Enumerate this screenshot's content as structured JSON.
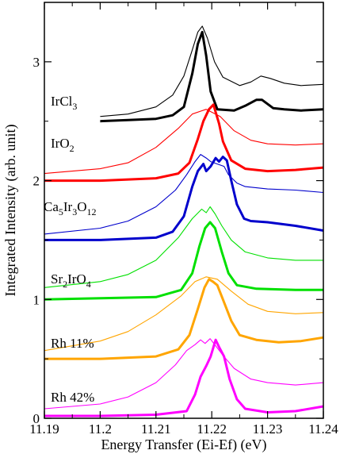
{
  "chart_data": {
    "type": "line",
    "xlabel": "Energy Transfer (Ei-Ef) (eV)",
    "ylabel": "Integrated Intensity (arb. unit)",
    "xlim": [
      11.19,
      11.24
    ],
    "ylim": [
      0,
      3.5
    ],
    "x_ticks": [
      "11.19",
      "11.2",
      "11.21",
      "11.22",
      "11.23",
      "11.24"
    ],
    "y_ticks": [
      "0",
      "1",
      "2",
      "3"
    ],
    "grid": false,
    "legend": "none",
    "series_labels": [
      {
        "parts": [
          {
            "t": "IrCl"
          },
          {
            "t": "3",
            "sub": true
          }
        ],
        "color": "#000000"
      },
      {
        "parts": [
          {
            "t": "IrO"
          },
          {
            "t": "2",
            "sub": true
          }
        ],
        "color": "#ff0000"
      },
      {
        "parts": [
          {
            "t": "Ca"
          },
          {
            "t": "5",
            "sub": true
          },
          {
            "t": "Ir"
          },
          {
            "t": "3",
            "sub": true
          },
          {
            "t": "O"
          },
          {
            "t": "12",
            "sub": true
          }
        ],
        "color": "#0000cc"
      },
      {
        "parts": [
          {
            "t": "Sr"
          },
          {
            "t": "2",
            "sub": true
          },
          {
            "t": "IrO"
          },
          {
            "t": "4",
            "sub": true
          }
        ],
        "color": "#00e000"
      },
      {
        "parts": [
          {
            "t": "Rh 11%"
          }
        ],
        "color": "#ffa500"
      },
      {
        "parts": [
          {
            "t": "Rh 42%"
          }
        ],
        "color": "#ff00ff"
      }
    ],
    "series": [
      {
        "color": "#000000",
        "width": "thick",
        "points": [
          [
            11.2,
            2.5
          ],
          [
            11.205,
            2.51
          ],
          [
            11.21,
            2.52
          ],
          [
            11.213,
            2.55
          ],
          [
            11.215,
            2.62
          ],
          [
            11.2165,
            2.9
          ],
          [
            11.2175,
            3.15
          ],
          [
            11.2183,
            3.25
          ],
          [
            11.219,
            3.05
          ],
          [
            11.2198,
            2.75
          ],
          [
            11.221,
            2.6
          ],
          [
            11.224,
            2.59
          ],
          [
            11.226,
            2.63
          ],
          [
            11.228,
            2.68
          ],
          [
            11.229,
            2.68
          ],
          [
            11.231,
            2.61
          ],
          [
            11.233,
            2.6
          ],
          [
            11.236,
            2.59
          ],
          [
            11.24,
            2.6
          ]
        ]
      },
      {
        "color": "#000000",
        "width": "thin",
        "points": [
          [
            11.2,
            2.54
          ],
          [
            11.205,
            2.56
          ],
          [
            11.21,
            2.62
          ],
          [
            11.213,
            2.72
          ],
          [
            11.215,
            2.88
          ],
          [
            11.2165,
            3.1
          ],
          [
            11.2175,
            3.25
          ],
          [
            11.2183,
            3.3
          ],
          [
            11.2192,
            3.2
          ],
          [
            11.2205,
            3.0
          ],
          [
            11.222,
            2.87
          ],
          [
            11.225,
            2.8
          ],
          [
            11.227,
            2.83
          ],
          [
            11.2288,
            2.88
          ],
          [
            11.2305,
            2.86
          ],
          [
            11.233,
            2.82
          ],
          [
            11.236,
            2.8
          ],
          [
            11.24,
            2.81
          ]
        ]
      },
      {
        "color": "#ff0000",
        "width": "thick",
        "points": [
          [
            11.19,
            2.0
          ],
          [
            11.2,
            2.0
          ],
          [
            11.21,
            2.02
          ],
          [
            11.214,
            2.06
          ],
          [
            11.216,
            2.15
          ],
          [
            11.2175,
            2.35
          ],
          [
            11.2185,
            2.5
          ],
          [
            11.2195,
            2.6
          ],
          [
            11.2203,
            2.64
          ],
          [
            11.2213,
            2.48
          ],
          [
            11.222,
            2.33
          ],
          [
            11.2235,
            2.17
          ],
          [
            11.226,
            2.1
          ],
          [
            11.23,
            2.08
          ],
          [
            11.235,
            2.09
          ],
          [
            11.24,
            2.11
          ]
        ]
      },
      {
        "color": "#ff0000",
        "width": "thin",
        "points": [
          [
            11.19,
            2.06
          ],
          [
            11.2,
            2.1
          ],
          [
            11.205,
            2.15
          ],
          [
            11.21,
            2.28
          ],
          [
            11.214,
            2.44
          ],
          [
            11.2165,
            2.56
          ],
          [
            11.219,
            2.6
          ],
          [
            11.2215,
            2.54
          ],
          [
            11.224,
            2.42
          ],
          [
            11.227,
            2.34
          ],
          [
            11.23,
            2.31
          ],
          [
            11.235,
            2.3
          ],
          [
            11.24,
            2.31
          ]
        ]
      },
      {
        "color": "#0000cc",
        "width": "thick",
        "points": [
          [
            11.19,
            1.5
          ],
          [
            11.2,
            1.5
          ],
          [
            11.21,
            1.52
          ],
          [
            11.213,
            1.57
          ],
          [
            11.215,
            1.7
          ],
          [
            11.2165,
            1.95
          ],
          [
            11.2175,
            2.08
          ],
          [
            11.2185,
            2.14
          ],
          [
            11.219,
            2.08
          ],
          [
            11.2198,
            2.12
          ],
          [
            11.2207,
            2.19
          ],
          [
            11.2213,
            2.16
          ],
          [
            11.222,
            2.2
          ],
          [
            11.2227,
            2.17
          ],
          [
            11.2235,
            2.0
          ],
          [
            11.2245,
            1.8
          ],
          [
            11.2258,
            1.68
          ],
          [
            11.227,
            1.66
          ],
          [
            11.23,
            1.65
          ],
          [
            11.235,
            1.62
          ],
          [
            11.24,
            1.58
          ]
        ]
      },
      {
        "color": "#0000cc",
        "width": "thin",
        "points": [
          [
            11.19,
            1.55
          ],
          [
            11.2,
            1.6
          ],
          [
            11.205,
            1.66
          ],
          [
            11.21,
            1.78
          ],
          [
            11.2135,
            1.92
          ],
          [
            11.2155,
            2.05
          ],
          [
            11.217,
            2.16
          ],
          [
            11.218,
            2.22
          ],
          [
            11.219,
            2.19
          ],
          [
            11.2198,
            2.16
          ],
          [
            11.221,
            2.14
          ],
          [
            11.2222,
            2.12
          ],
          [
            11.223,
            2.05
          ],
          [
            11.2245,
            1.98
          ],
          [
            11.226,
            1.95
          ],
          [
            11.23,
            1.93
          ],
          [
            11.235,
            1.92
          ],
          [
            11.24,
            1.9
          ]
        ]
      },
      {
        "color": "#00e000",
        "width": "thick",
        "points": [
          [
            11.19,
            1.0
          ],
          [
            11.2,
            1.01
          ],
          [
            11.21,
            1.02
          ],
          [
            11.2145,
            1.08
          ],
          [
            11.2165,
            1.22
          ],
          [
            11.2178,
            1.45
          ],
          [
            11.2188,
            1.6
          ],
          [
            11.2197,
            1.65
          ],
          [
            11.2206,
            1.6
          ],
          [
            11.2218,
            1.4
          ],
          [
            11.223,
            1.22
          ],
          [
            11.2245,
            1.12
          ],
          [
            11.228,
            1.09
          ],
          [
            11.235,
            1.08
          ],
          [
            11.24,
            1.08
          ]
        ]
      },
      {
        "color": "#00e000",
        "width": "thin",
        "points": [
          [
            11.19,
            1.1
          ],
          [
            11.2,
            1.15
          ],
          [
            11.205,
            1.21
          ],
          [
            11.21,
            1.33
          ],
          [
            11.214,
            1.52
          ],
          [
            11.2165,
            1.68
          ],
          [
            11.2182,
            1.76
          ],
          [
            11.219,
            1.73
          ],
          [
            11.2197,
            1.78
          ],
          [
            11.2206,
            1.72
          ],
          [
            11.2218,
            1.62
          ],
          [
            11.2235,
            1.5
          ],
          [
            11.226,
            1.4
          ],
          [
            11.23,
            1.35
          ],
          [
            11.235,
            1.33
          ],
          [
            11.24,
            1.33
          ]
        ]
      },
      {
        "color": "#ffa500",
        "width": "thick",
        "points": [
          [
            11.19,
            0.5
          ],
          [
            11.2,
            0.5
          ],
          [
            11.21,
            0.52
          ],
          [
            11.214,
            0.58
          ],
          [
            11.216,
            0.7
          ],
          [
            11.2175,
            0.92
          ],
          [
            11.2187,
            1.1
          ],
          [
            11.2195,
            1.17
          ],
          [
            11.2202,
            1.15
          ],
          [
            11.221,
            1.12
          ],
          [
            11.222,
            1.0
          ],
          [
            11.2235,
            0.82
          ],
          [
            11.225,
            0.7
          ],
          [
            11.228,
            0.66
          ],
          [
            11.232,
            0.64
          ],
          [
            11.236,
            0.65
          ],
          [
            11.24,
            0.68
          ]
        ]
      },
      {
        "color": "#ffa500",
        "width": "thin",
        "points": [
          [
            11.19,
            0.57
          ],
          [
            11.2,
            0.65
          ],
          [
            11.205,
            0.73
          ],
          [
            11.21,
            0.87
          ],
          [
            11.2145,
            1.03
          ],
          [
            11.217,
            1.15
          ],
          [
            11.219,
            1.19
          ],
          [
            11.221,
            1.17
          ],
          [
            11.2235,
            1.07
          ],
          [
            11.2265,
            0.96
          ],
          [
            11.23,
            0.9
          ],
          [
            11.235,
            0.88
          ],
          [
            11.24,
            0.89
          ]
        ]
      },
      {
        "color": "#ff00ff",
        "width": "thick",
        "points": [
          [
            11.19,
            0.02
          ],
          [
            11.2,
            0.02
          ],
          [
            11.21,
            0.03
          ],
          [
            11.2155,
            0.06
          ],
          [
            11.217,
            0.2
          ],
          [
            11.218,
            0.35
          ],
          [
            11.219,
            0.44
          ],
          [
            11.2198,
            0.52
          ],
          [
            11.2207,
            0.66
          ],
          [
            11.2213,
            0.6
          ],
          [
            11.2222,
            0.52
          ],
          [
            11.2232,
            0.33
          ],
          [
            11.2245,
            0.16
          ],
          [
            11.226,
            0.08
          ],
          [
            11.23,
            0.05
          ],
          [
            11.235,
            0.06
          ],
          [
            11.24,
            0.1
          ]
        ]
      },
      {
        "color": "#ff00ff",
        "width": "thin",
        "points": [
          [
            11.19,
            0.08
          ],
          [
            11.2,
            0.12
          ],
          [
            11.205,
            0.18
          ],
          [
            11.21,
            0.3
          ],
          [
            11.2135,
            0.45
          ],
          [
            11.2155,
            0.57
          ],
          [
            11.217,
            0.62
          ],
          [
            11.218,
            0.66
          ],
          [
            11.2188,
            0.63
          ],
          [
            11.2197,
            0.67
          ],
          [
            11.2207,
            0.61
          ],
          [
            11.222,
            0.53
          ],
          [
            11.224,
            0.42
          ],
          [
            11.227,
            0.33
          ],
          [
            11.23,
            0.3
          ],
          [
            11.235,
            0.28
          ],
          [
            11.24,
            0.3
          ]
        ]
      }
    ]
  }
}
